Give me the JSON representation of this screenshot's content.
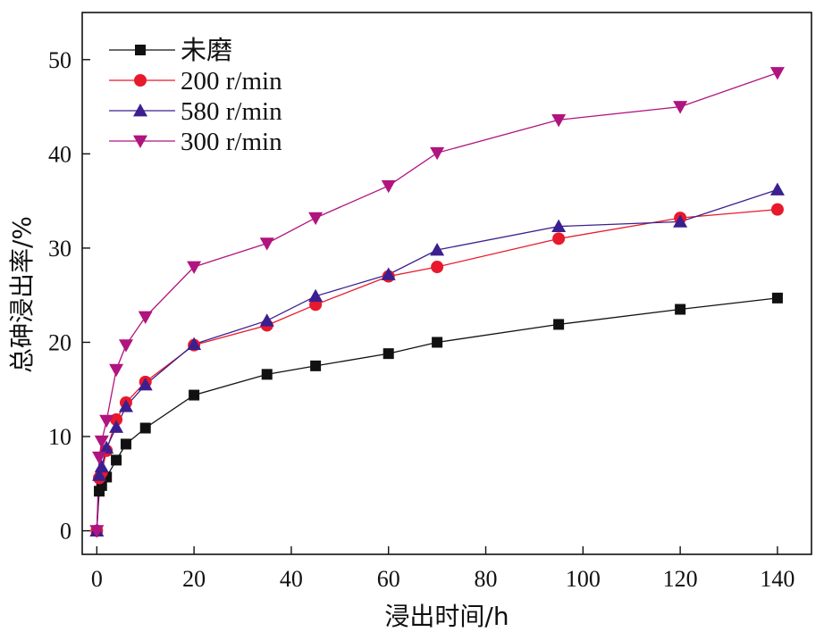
{
  "chart_data": {
    "type": "line",
    "title": "",
    "xlabel": "浸出时间/h",
    "ylabel": "总砷浸出率/%",
    "xlim": [
      -3,
      147
    ],
    "ylim": [
      -2.5,
      55
    ],
    "xticks": [
      "0",
      "20",
      "40",
      "60",
      "80",
      "100",
      "120",
      "140"
    ],
    "yticks": [
      "0",
      "10",
      "20",
      "30",
      "40",
      "50"
    ],
    "grid": false,
    "legend_position": "top-left",
    "series": [
      {
        "name": "未磨",
        "marker": "square",
        "color": "#111111",
        "x": [
          0,
          0.5,
          1,
          2,
          4,
          6,
          10,
          20,
          35,
          45,
          60,
          70,
          95,
          120,
          140
        ],
        "y": [
          0,
          4.2,
          4.8,
          5.7,
          7.5,
          9.2,
          10.9,
          14.4,
          16.6,
          17.5,
          18.8,
          20.0,
          21.9,
          23.5,
          24.7
        ]
      },
      {
        "name": "200 r/min",
        "marker": "circle",
        "color": "#e8192c",
        "x": [
          0,
          0.5,
          1,
          2,
          4,
          6,
          10,
          20,
          35,
          45,
          60,
          70,
          95,
          120,
          140
        ],
        "y": [
          0,
          5.6,
          6.2,
          8.5,
          11.8,
          13.6,
          15.8,
          19.7,
          21.8,
          24.0,
          27.0,
          28.0,
          31.0,
          33.2,
          34.1
        ]
      },
      {
        "name": "580 r/min",
        "marker": "triangle-up",
        "color": "#3c1f8f",
        "x": [
          0,
          0.5,
          1,
          2,
          4,
          6,
          10,
          20,
          35,
          45,
          60,
          70,
          95,
          120,
          140
        ],
        "y": [
          0,
          5.9,
          6.8,
          8.8,
          11.0,
          13.2,
          15.5,
          19.8,
          22.3,
          24.9,
          27.2,
          29.8,
          32.3,
          32.8,
          36.2
        ]
      },
      {
        "name": "300 r/min",
        "marker": "triangle-down",
        "color": "#b0147e",
        "x": [
          0,
          0.5,
          1,
          2,
          4,
          6,
          10,
          20,
          35,
          45,
          60,
          70,
          95,
          120,
          140
        ],
        "y": [
          0,
          7.8,
          9.5,
          11.7,
          17.1,
          19.7,
          22.7,
          28.0,
          30.5,
          33.2,
          36.6,
          40.1,
          43.6,
          45.0,
          48.6
        ]
      }
    ]
  }
}
